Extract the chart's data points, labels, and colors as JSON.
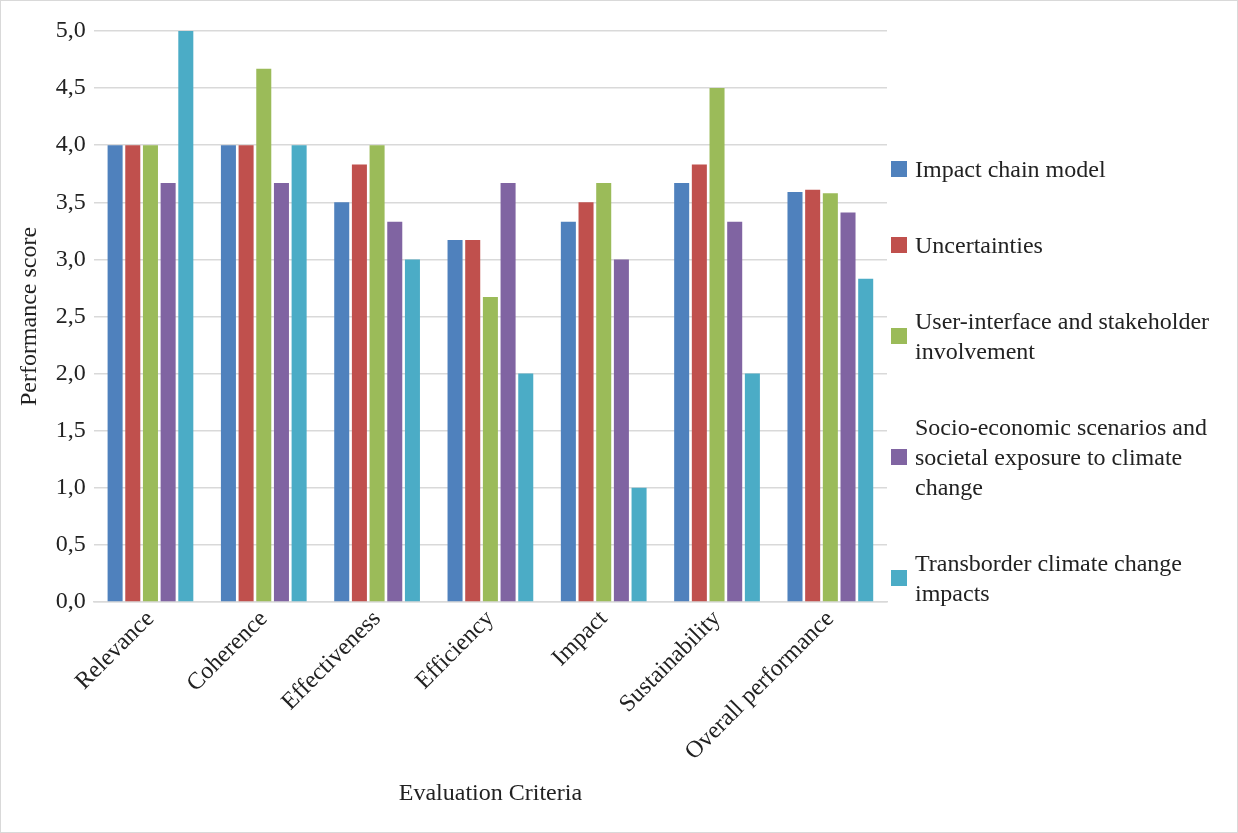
{
  "chart_data": {
    "type": "bar",
    "xlabel": "Evaluation Criteria",
    "ylabel": "Performance score",
    "categories": [
      "Relevance",
      "Coherence",
      "Effectiveness",
      "Efficiency",
      "Impact",
      "Sustainability",
      "Overall performance"
    ],
    "series": [
      {
        "name": "Impact chain model",
        "color": "#4f81bd",
        "values": [
          4,
          4,
          3.5,
          3.17,
          3.33,
          3.67,
          3.59
        ]
      },
      {
        "name": "Uncertainties",
        "color": "#c0504d",
        "values": [
          4,
          4,
          3.83,
          3.17,
          3.5,
          3.83,
          3.61
        ]
      },
      {
        "name": "User-interface and stakeholder involvement",
        "color": "#9bbb59",
        "values": [
          4,
          4.67,
          4,
          2.67,
          3.67,
          4.5,
          3.58
        ]
      },
      {
        "name": "Socio-economic scenarios and societal exposure to climate change",
        "color": "#8064a2",
        "values": [
          3.67,
          3.67,
          3.33,
          3.67,
          3,
          3.33,
          3.41
        ]
      },
      {
        "name": "Transborder climate change impacts",
        "color": "#4bacc6",
        "values": [
          5,
          4,
          3,
          2,
          1,
          2,
          2.83
        ]
      }
    ],
    "ylim": [
      0,
      5
    ],
    "yticks": [
      {
        "value": 0,
        "label": "0,0"
      },
      {
        "value": 0.5,
        "label": "0,5"
      },
      {
        "value": 1,
        "label": "1,0"
      },
      {
        "value": 1.5,
        "label": "1,5"
      },
      {
        "value": 2,
        "label": "2,0"
      },
      {
        "value": 2.5,
        "label": "2,5"
      },
      {
        "value": 3,
        "label": "3,0"
      },
      {
        "value": 3.5,
        "label": "3,5"
      },
      {
        "value": 4,
        "label": "4,0"
      },
      {
        "value": 4.5,
        "label": "4,5"
      },
      {
        "value": 5,
        "label": "5,0"
      }
    ],
    "grid": "y",
    "legend": "right"
  }
}
